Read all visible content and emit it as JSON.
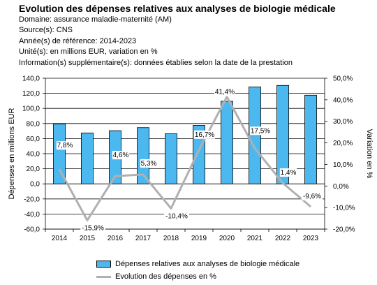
{
  "header": {
    "title": "Evolution des dépenses relatives aux analyses de biologie médicale",
    "lines": [
      "Domaine: assurance maladie-maternité (AM)",
      "Source(s): CNS",
      "Année(s) de référence: 2014-2023",
      "Unité(s): en millions EUR, variation en %",
      "Information(s) supplémentaire(s): données établies selon la date de la prestation"
    ]
  },
  "chart_data": {
    "type": "bar",
    "categories": [
      "2014",
      "2015",
      "2016",
      "2017",
      "2018",
      "2019",
      "2020",
      "2021",
      "2022",
      "2023"
    ],
    "series": [
      {
        "name": "Dépenses relatives aux analyses de biologie médicale",
        "type": "bar",
        "axis": "left",
        "values": [
          79.5,
          67.5,
          70.5,
          74.5,
          66.5,
          77.5,
          109.5,
          128.5,
          130.5,
          117.5
        ]
      },
      {
        "name": "Evolution des dépenses en %",
        "type": "line",
        "axis": "right",
        "values": [
          7.8,
          -15.9,
          4.6,
          5.3,
          -10.4,
          16.7,
          41.4,
          17.5,
          1.4,
          -9.6
        ],
        "labels": [
          "7,8%",
          "-15,9%",
          "4,6%",
          "5,3%",
          "-10,4%",
          "16,7%",
          "41,4%",
          "17,5%",
          "1,4%",
          "-9,6%"
        ]
      }
    ],
    "ylabel": "Dépenses en millions EUR",
    "y2label": "Variation en %",
    "ylim": [
      -60,
      140
    ],
    "y2lim": [
      -20,
      50
    ],
    "yticks": [
      "140,0",
      "120,0",
      "100,0",
      "80,0",
      "60,0",
      "40,0",
      "20,0",
      "0,0",
      "-20,0",
      "-40,0",
      "-60,0"
    ],
    "y2ticks": [
      "50,0%",
      "40,0%",
      "30,0%",
      "20,0%",
      "10,0%",
      "0,0%",
      "-10,0%",
      "-20,0%"
    ],
    "grid": true,
    "legend_position": "bottom",
    "colors": {
      "bar": "#4cb8f0",
      "line": "#b0b0b0"
    }
  }
}
